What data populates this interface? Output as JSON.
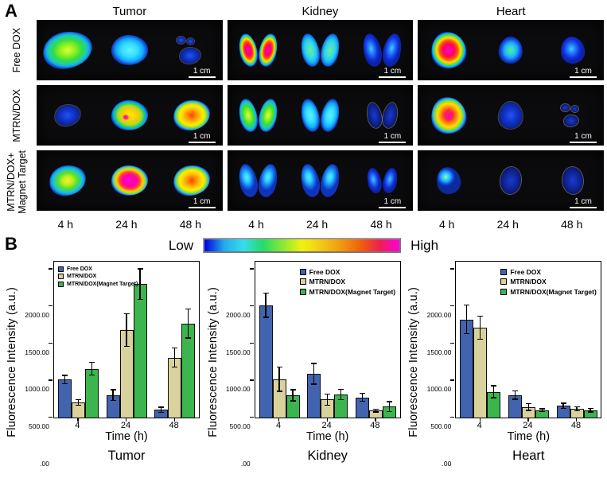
{
  "panelA": {
    "label": "A",
    "columns": [
      "Tumor",
      "Kidney",
      "Heart"
    ],
    "time_labels": [
      "4 h",
      "24 h",
      "48 h"
    ],
    "scale_label": "1 cm",
    "rows": [
      {
        "label": "Free DOX",
        "cells": [
          [
            "blob|lg|green",
            "blob|md|cyan",
            "cluster|sm|dimblue"
          ],
          [
            "pair|md|hot",
            "pair|md|cyangreen",
            "pair|md|blue"
          ],
          [
            "heart|md|hot",
            "heart|sm|bluegreen",
            "heart|sm|blue"
          ]
        ]
      },
      {
        "label": "MTRN/DOX",
        "cells": [
          [
            "blob|sm|dimblue",
            "blob|md|warmspot",
            "blob|md|warm"
          ],
          [
            "pair|md|green",
            "pair|md|cyan",
            "pair|sm|dim"
          ],
          [
            "heart|md|warmhot",
            "heart|sm|dimblue",
            "cluster|xs|dim"
          ]
        ]
      },
      {
        "label": "MTRN/DOX+\nMagnet Target",
        "cells": [
          [
            "blob|md|greenwarm",
            "blob|md|hotcore",
            "blob|md|warm"
          ],
          [
            "pair|md|cyanblue",
            "pair|md|cyanblue",
            "pair|sm|blue"
          ],
          [
            "heart|sm|cyanspot",
            "oval|sm|dim",
            "oval|sm|dim"
          ]
        ]
      }
    ]
  },
  "panelB": {
    "label": "B",
    "colorbar": {
      "low": "Low",
      "high": "High",
      "colors": [
        "#0000e0",
        "#22aaee",
        "#33ddee",
        "#22dd66",
        "#88e833",
        "#f2f20c",
        "#f2c814",
        "#f2990f",
        "#f2600a",
        "#f01e50",
        "#ff00dd"
      ]
    }
  },
  "chart_data": [
    {
      "type": "bar",
      "title": "Tumor",
      "xlabel": "Time (h)",
      "ylabel": "Fluorescence Intensity (a.u.)",
      "categories": [
        "4",
        "24",
        "48"
      ],
      "ylim": [
        0,
        2100
      ],
      "ytick_values": [
        0,
        500,
        1000,
        1500,
        2000
      ],
      "ytick_labels": [
        ".00",
        "500.00",
        "1000.00",
        "1500.00",
        "2000.00"
      ],
      "grid": false,
      "legend_pos": "left",
      "series": [
        {
          "name": "Free DOX",
          "color": "#4263ad",
          "values": [
            510,
            300,
            100
          ],
          "errors": [
            55,
            70,
            35
          ]
        },
        {
          "name": "MTRN/DOX",
          "color": "#d9d29c",
          "values": [
            200,
            1175,
            805
          ],
          "errors": [
            35,
            220,
            130
          ]
        },
        {
          "name": "MTRN/DOX(Magnet Target)",
          "color": "#3cb54e",
          "values": [
            655,
            1795,
            1265
          ],
          "errors": [
            85,
            205,
            195
          ]
        }
      ]
    },
    {
      "type": "bar",
      "title": "Kidney",
      "xlabel": "Time (h)",
      "ylabel": "Fluorescence Intensity (a.u.)",
      "categories": [
        "4",
        "24",
        "48"
      ],
      "ylim": [
        0,
        2100
      ],
      "ytick_values": [
        0,
        500,
        1000,
        1500,
        2000
      ],
      "ytick_labels": [
        ".00",
        "500.00",
        "1000.00",
        "1500.00",
        "2000.00"
      ],
      "grid": false,
      "legend_pos": "center",
      "series": [
        {
          "name": "Free DOX",
          "color": "#4263ad",
          "values": [
            1510,
            585,
            270
          ],
          "errors": [
            165,
            140,
            55
          ]
        },
        {
          "name": "MTRN/DOX",
          "color": "#d9d29c",
          "values": [
            515,
            240,
            90
          ],
          "errors": [
            165,
            75,
            20
          ]
        },
        {
          "name": "MTRN/DOX(Magnet Target)",
          "color": "#3cb54e",
          "values": [
            295,
            305,
            145
          ],
          "errors": [
            75,
            70,
            65
          ]
        }
      ]
    },
    {
      "type": "bar",
      "title": "Heart",
      "xlabel": "Time (h)",
      "ylabel": "Fluorescence Intensity (a.u.)",
      "categories": [
        "4",
        "24",
        "48"
      ],
      "ylim": [
        0,
        2100
      ],
      "ytick_values": [
        0,
        500,
        1000,
        1500,
        2000
      ],
      "ytick_labels": [
        ".00",
        "500.00",
        "1000.00",
        "1500.00",
        "2000.00"
      ],
      "grid": false,
      "legend_pos": "center",
      "series": [
        {
          "name": "Free DOX",
          "color": "#4263ad",
          "values": [
            1320,
            300,
            155
          ],
          "errors": [
            190,
            55,
            35
          ]
        },
        {
          "name": "MTRN/DOX",
          "color": "#d9d29c",
          "values": [
            1210,
            140,
            115
          ],
          "errors": [
            155,
            45,
            25
          ]
        },
        {
          "name": "MTRN/DOX(Magnet Target)",
          "color": "#3cb54e",
          "values": [
            345,
            95,
            95
          ],
          "errors": [
            80,
            20,
            25
          ]
        }
      ]
    }
  ]
}
